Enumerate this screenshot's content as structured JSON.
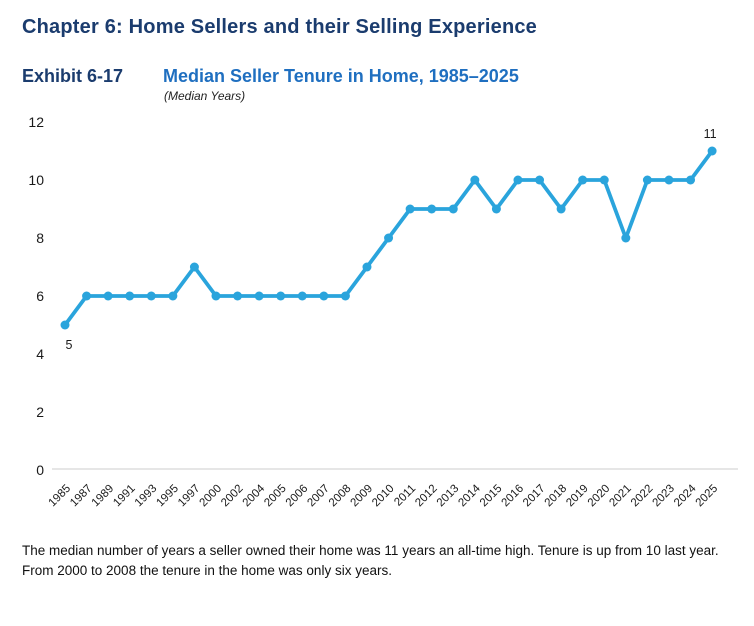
{
  "page": {
    "chapter_title": "Chapter 6: Home Sellers and their Selling Experience",
    "exhibit_label": "Exhibit 6-17",
    "exhibit_title": "Median Seller Tenure in Home, 1985–2025",
    "exhibit_subtitle": "(Median Years)",
    "caption": "The median number of years a seller owned their home was 11 years an all-time high. Tenure is up from 10 last year. From 2000 to 2008 the tenure in the home was only six years."
  },
  "colors": {
    "chapter_title": "#1B3C6E",
    "exhibit_label": "#1B3C6E",
    "exhibit_title": "#1F6FC0",
    "line": "#2AA4DC",
    "axis_line": "#CCCCCC",
    "tick_text": "#1A1A1A"
  },
  "chart_data": {
    "type": "line",
    "title": "Median Seller Tenure in Home, 1985–2025",
    "subtitle": "(Median Years)",
    "categories": [
      "1985",
      "1987",
      "1989",
      "1991",
      "1993",
      "1995",
      "1997",
      "2000",
      "2002",
      "2004",
      "2005",
      "2006",
      "2007",
      "2008",
      "2009",
      "2010",
      "2011",
      "2012",
      "2013",
      "2014",
      "2015",
      "2016",
      "2017",
      "2018",
      "2019",
      "2020",
      "2021",
      "2022",
      "2023",
      "2024",
      "2025"
    ],
    "values": [
      5,
      6,
      6,
      6,
      6,
      6,
      7,
      6,
      6,
      6,
      6,
      6,
      6,
      6,
      7,
      8,
      9,
      9,
      9,
      10,
      9,
      10,
      10,
      9,
      10,
      10,
      8,
      10,
      10,
      10,
      11
    ],
    "xlabel": "",
    "ylabel": "",
    "ylim": [
      0,
      12
    ],
    "yticks": [
      0,
      2,
      4,
      6,
      8,
      10,
      12
    ],
    "grid": false,
    "legend": "none",
    "baseline_axis_only": true,
    "point_labels": [
      {
        "index": 0,
        "text": "5",
        "position": "below"
      },
      {
        "index": 30,
        "text": "11",
        "position": "above"
      }
    ]
  }
}
